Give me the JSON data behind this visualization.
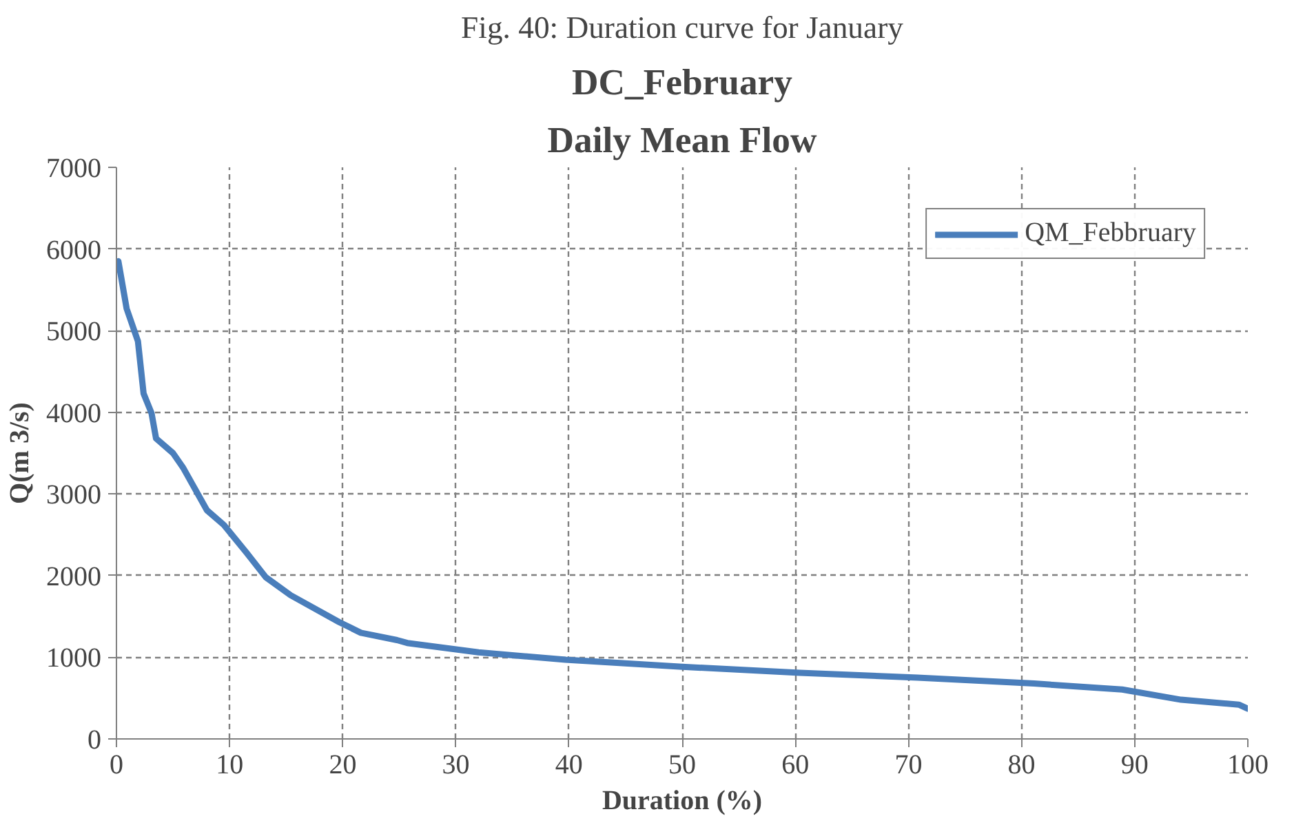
{
  "chart_data": {
    "type": "line",
    "title": "DC_February",
    "subtitle": "Daily Mean Flow",
    "annotations": [
      "Fig. 40: Duration curve for January"
    ],
    "xlabel": "Duration (%)",
    "ylabel": "Q(m 3/s)",
    "x": [
      0.17,
      0.9,
      1.9,
      2.4,
      3.1,
      3.5,
      5.0,
      5.9,
      8.0,
      9.5,
      11.5,
      13.2,
      15.4,
      19.7,
      21.6,
      24.8,
      25.7,
      32,
      39.7,
      50,
      60.4,
      70.8,
      81.1,
      88.9,
      94.1,
      99.2,
      100
    ],
    "series": [
      {
        "name": "QM_Febbruary",
        "color": "#4a7ebb",
        "values": [
          5850,
          5270,
          4870,
          4230,
          3990,
          3680,
          3500,
          3320,
          2800,
          2620,
          2280,
          1980,
          1760,
          1430,
          1300,
          1210,
          1175,
          1060,
          970,
          883,
          810,
          750,
          678,
          605,
          480,
          420,
          370
        ]
      }
    ],
    "xlim": [
      0,
      100
    ],
    "xticks": [
      0,
      10,
      20,
      30,
      40,
      50,
      60,
      70,
      80,
      90,
      100
    ],
    "ylim": [
      0,
      7000
    ],
    "yticks": [
      0,
      1000,
      2000,
      3000,
      4000,
      5000,
      6000,
      7000
    ],
    "grid": true,
    "legend": "top right",
    "marker": "none",
    "line_style": "solid"
  }
}
